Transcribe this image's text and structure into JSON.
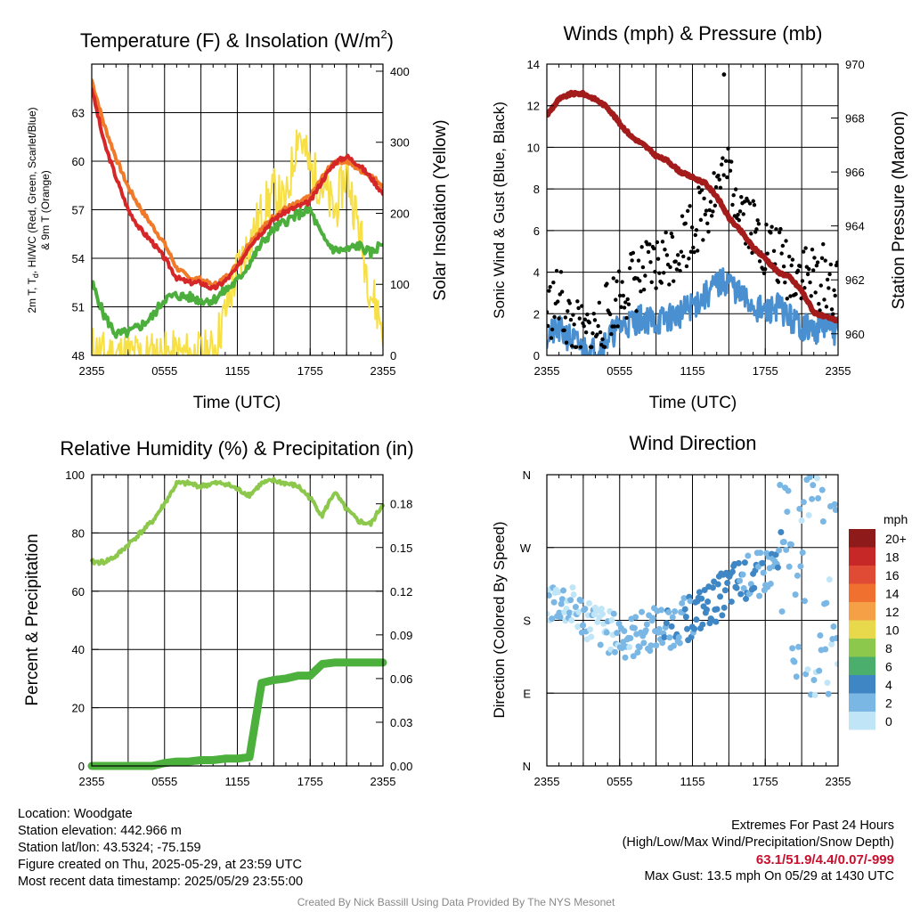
{
  "charts": {
    "temperature": {
      "title_main": "Temperature (F) & Insolation (W/m",
      "title_sup": "2",
      "title_end": ")",
      "ylabel_line1": "2m T, T",
      "ylabel_sub": "d",
      "ylabel_line1_end": ", HI/WC (Red, Green, Scarlet/Blue)",
      "ylabel_line2": "& 9m T (Orange)",
      "y2label": "Solar Insolation (Yellow)",
      "xlabel": "Time (UTC)"
    },
    "winds": {
      "title": "Winds (mph) & Pressure (mb)",
      "ylabel": "Sonic Wind & Gust (Blue, Black)",
      "y2label": "Station Pressure (Maroon)",
      "xlabel": "Time (UTC)"
    },
    "humidity": {
      "title": "Relative Humidity (%) & Precipitation (in)",
      "ylabel": "Percent & Precipitation"
    },
    "direction": {
      "title": "Wind Direction",
      "ylabel": "Direction (Colored By Speed)",
      "legend_title": "mph"
    }
  },
  "chart_data": [
    {
      "type": "line",
      "id": "temperature",
      "x_ticks": [
        "2355",
        "0555",
        "1155",
        "1755",
        "2355"
      ],
      "ylim": [
        48,
        66
      ],
      "y_ticks": [
        48,
        51,
        54,
        57,
        60,
        63
      ],
      "y2lim": [
        0,
        410
      ],
      "y2_ticks": [
        0,
        100,
        200,
        300,
        400
      ],
      "x_hours": [
        0,
        1,
        2,
        3,
        4,
        5,
        6,
        7,
        8,
        9,
        10,
        11,
        12,
        13,
        14,
        15,
        16,
        17,
        18,
        19,
        20,
        21,
        22,
        23,
        24
      ],
      "series": [
        {
          "color": "#d62728",
          "values": [
            64.5,
            61.2,
            59.0,
            57.0,
            55.8,
            55.0,
            54.0,
            52.8,
            52.5,
            52.5,
            52.1,
            52.6,
            53.4,
            54.8,
            55.6,
            56.4,
            56.9,
            57.2,
            57.5,
            58.8,
            59.9,
            60.3,
            59.8,
            59.0,
            58.0
          ],
          "axis": "left"
        },
        {
          "color": "#f07a2a",
          "values": [
            65.0,
            62.3,
            60.2,
            58.4,
            57.1,
            56.0,
            54.9,
            53.4,
            52.8,
            52.7,
            52.3,
            52.8,
            53.6,
            55.0,
            55.8,
            56.6,
            57.1,
            57.4,
            57.8,
            59.0,
            60.0,
            60.0,
            59.5,
            59.1,
            58.5
          ],
          "axis": "left"
        },
        {
          "color": "#4cae3c",
          "values": [
            52.5,
            50.5,
            49.3,
            49.4,
            49.8,
            50.4,
            51.5,
            51.7,
            51.6,
            51.4,
            51.4,
            52.0,
            52.6,
            53.7,
            54.9,
            55.8,
            56.3,
            56.7,
            57.0,
            55.3,
            54.5,
            54.5,
            54.8,
            54.3,
            55.0
          ],
          "axis": "left"
        },
        {
          "color": "#f7e047",
          "values": [
            10,
            0,
            0,
            0,
            0,
            0,
            0,
            0,
            0,
            0,
            5,
            60,
            120,
            160,
            200,
            230,
            210,
            320,
            260,
            240,
            200,
            260,
            180,
            90,
            40
          ],
          "axis": "right"
        }
      ]
    },
    {
      "type": "line",
      "id": "winds",
      "x_ticks": [
        "2355",
        "0555",
        "1155",
        "1755",
        "2355"
      ],
      "ylim": [
        0,
        14
      ],
      "y_ticks": [
        0,
        2,
        4,
        6,
        8,
        10,
        12,
        14
      ],
      "y2lim": [
        959.2,
        970
      ],
      "y2_ticks": [
        960,
        962,
        964,
        966,
        968,
        970
      ],
      "x_hours": [
        0,
        1,
        2,
        3,
        4,
        5,
        6,
        7,
        8,
        9,
        10,
        11,
        12,
        13,
        14,
        15,
        16,
        17,
        18,
        19,
        20,
        21,
        22,
        23,
        24
      ],
      "series": [
        {
          "color": "#4a90d0",
          "name_hint": "wind",
          "values": [
            1.0,
            1.2,
            0.8,
            0.3,
            0.2,
            0.8,
            1.4,
            1.6,
            1.8,
            1.6,
            1.8,
            2.0,
            2.4,
            2.8,
            3.4,
            3.6,
            2.8,
            2.4,
            2.0,
            2.4,
            1.8,
            1.4,
            1.2,
            1.4,
            1.1
          ]
        },
        {
          "color": "#000000",
          "name_hint": "gust",
          "values": [
            2.0,
            2.8,
            1.4,
            0.8,
            1.2,
            2.0,
            3.0,
            3.6,
            3.8,
            4.2,
            4.8,
            5.4,
            6.2,
            7.0,
            8.2,
            8.6,
            7.4,
            6.2,
            5.2,
            4.8,
            4.0,
            4.2,
            3.6,
            3.8,
            3.0
          ]
        },
        {
          "color": "#a31b1b",
          "name_hint": "pressure",
          "axis": "right",
          "values": [
            968.1,
            968.7,
            968.9,
            968.9,
            968.7,
            968.4,
            967.8,
            967.3,
            967.0,
            966.6,
            966.4,
            966.0,
            965.8,
            965.6,
            965.1,
            964.3,
            963.8,
            963.2,
            962.8,
            962.3,
            962.1,
            961.6,
            960.8,
            960.6,
            960.5
          ]
        }
      ],
      "peak_gust": 13.5
    },
    {
      "type": "line",
      "id": "humidity",
      "x_ticks": [
        "2355",
        "0555",
        "1155",
        "1755",
        "2355"
      ],
      "ylim": [
        0,
        100
      ],
      "y_ticks": [
        0,
        20,
        40,
        60,
        80,
        100
      ],
      "y2lim": [
        0,
        0.2
      ],
      "y2_ticks": [
        "0.00",
        "0.03",
        "0.06",
        "0.09",
        "0.12",
        "0.15",
        "0.18"
      ],
      "x_hours": [
        0,
        1,
        2,
        3,
        4,
        5,
        6,
        7,
        8,
        9,
        10,
        11,
        12,
        13,
        14,
        15,
        16,
        17,
        18,
        19,
        20,
        21,
        22,
        23,
        24
      ],
      "series": [
        {
          "color": "#8cc84b",
          "values": [
            70,
            70,
            72,
            76,
            80,
            84,
            90,
            97,
            97,
            96,
            97,
            97,
            95,
            93,
            97,
            98,
            97,
            96,
            92,
            86,
            94,
            88,
            84,
            83,
            90
          ]
        },
        {
          "color": "#4cb03c",
          "axis": "right",
          "values": [
            0,
            0,
            0,
            0,
            0,
            0,
            0.002,
            0.003,
            0.003,
            0.004,
            0.004,
            0.005,
            0.005,
            0.006,
            0.057,
            0.059,
            0.06,
            0.062,
            0.062,
            0.07,
            0.071,
            0.071,
            0.071,
            0.071,
            0.071
          ]
        }
      ]
    },
    {
      "type": "scatter",
      "id": "direction",
      "x_ticks": [
        "2355",
        "0555",
        "1155",
        "1755",
        "2355"
      ],
      "y_ticks": [
        "N",
        "E",
        "S",
        "W",
        "N"
      ],
      "ylim": [
        0,
        360
      ],
      "legend": [
        "20+",
        "18",
        "16",
        "14",
        "12",
        "10",
        "8",
        "6",
        "4",
        "2",
        "0"
      ],
      "legend_colors": [
        "#8f1a1a",
        "#c62828",
        "#e04b35",
        "#f07030",
        "#f5a046",
        "#e8d84c",
        "#8cc84b",
        "#4cae6c",
        "#3f86c4",
        "#7ab7e4",
        "#bfe5f7"
      ]
    }
  ],
  "info": {
    "location": "Location: Woodgate",
    "elevation": "Station elevation: 442.966 m",
    "latlon": "Station lat/lon: 43.5324; -75.159",
    "created": "Figure created on Thu, 2025-05-29, at 23:59 UTC",
    "recent": "Most recent data timestamp: 2025/05/29 23:55:00",
    "extremes_title": "Extremes For Past 24 Hours",
    "extremes_sub": "(High/Low/Max Wind/Precipitation/Snow Depth)",
    "extremes_values": "63.1/51.9/4.4/0.07/-999",
    "max_gust": "Max Gust: 13.5 mph On 05/29 at 1430 UTC"
  },
  "credit": "Created By Nick Bassill Using Data Provided By The NYS Mesonet"
}
